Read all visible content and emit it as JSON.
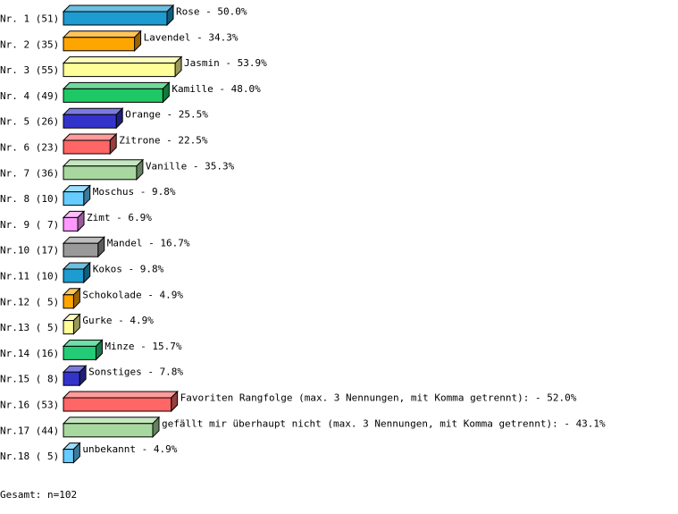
{
  "chart_data": {
    "type": "bar3d",
    "categories": [
      "Nr. 1 (51)",
      "Nr. 2 (35)",
      "Nr. 3 (55)",
      "Nr. 4 (49)",
      "Nr. 5 (26)",
      "Nr. 6 (23)",
      "Nr. 7 (36)",
      "Nr. 8 (10)",
      "Nr. 9 ( 7)",
      "Nr.10 (17)",
      "Nr.11 (10)",
      "Nr.12 ( 5)",
      "Nr.13 ( 5)",
      "Nr.14 (16)",
      "Nr.15 ( 8)",
      "Nr.16 (53)",
      "Nr.17 (44)",
      "Nr.18 ( 5)"
    ],
    "values": [
      50.0,
      34.3,
      53.9,
      48.0,
      25.5,
      22.5,
      35.3,
      9.8,
      6.9,
      16.7,
      9.8,
      4.9,
      4.9,
      15.7,
      7.8,
      52.0,
      43.1,
      4.9
    ],
    "value_labels": [
      "Rose -  50.0%",
      "Lavendel -  34.3%",
      "Jasmin -  53.9%",
      "Kamille -  48.0%",
      "Orange -  25.5%",
      "Zitrone -  22.5%",
      "Vanille -  35.3%",
      "Moschus -   9.8%",
      "Zimt -   6.9%",
      "Mandel -  16.7%",
      "Kokos -   9.8%",
      "Schokolade -   4.9%",
      "Gurke -   4.9%",
      "Minze -  15.7%",
      "Sonstiges -   7.8%",
      "Favoriten Rangfolge (max. 3 Nennungen, mit Komma getrennt): -  52.0%",
      "gefällt mir überhaupt nicht (max. 3 Nennungen, mit Komma getrennt): -  43.1%",
      "unbekannt -   4.9%"
    ],
    "colors": [
      "#1e9bd0",
      "#ffa500",
      "#ffff99",
      "#1ec864",
      "#3333cc",
      "#ff6666",
      "#a8d8a0",
      "#66ccff",
      "#ff99ff",
      "#999999",
      "#1e9bd0",
      "#ffa500",
      "#ffff99",
      "#22cc77",
      "#3333cc",
      "#ff6666",
      "#a8d8a0",
      "#66ccff"
    ],
    "footer": "Gesamt: n=102"
  }
}
